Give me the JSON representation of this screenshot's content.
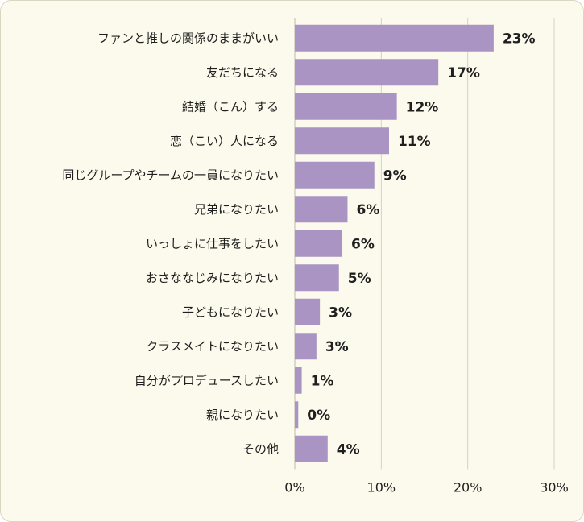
{
  "chart_data": {
    "type": "bar",
    "orientation": "horizontal",
    "categories": [
      "ファンと推しの関係のままがいい",
      "友だちになる",
      "結婚（こん）する",
      "恋（こい）人になる",
      "同じグループやチームの一員になりたい",
      "兄弟になりたい",
      "いっしょに仕事をしたい",
      "おさななじみになりたい",
      "子どもになりたい",
      "クラスメイトになりたい",
      "自分がプロデュースしたい",
      "親になりたい",
      "その他"
    ],
    "values": [
      23,
      17,
      12,
      11,
      9,
      6,
      6,
      5,
      3,
      3,
      1,
      0,
      4
    ],
    "value_labels": [
      "23%",
      "17%",
      "12%",
      "11%",
      "9%",
      "6%",
      "6%",
      "5%",
      "3%",
      "3%",
      "1%",
      "0%",
      "4%"
    ],
    "plotted_values": [
      23.0,
      16.6,
      11.8,
      10.9,
      9.2,
      6.1,
      5.5,
      5.1,
      2.9,
      2.5,
      0.8,
      0.4,
      3.8
    ],
    "xlim": [
      0,
      30
    ],
    "xticks": [
      "0%",
      "10%",
      "20%",
      "30%"
    ],
    "grid": true,
    "colors": {
      "bar": "#a994c4",
      "grid": "#d4d2c6",
      "background": "#fcfaec"
    }
  }
}
